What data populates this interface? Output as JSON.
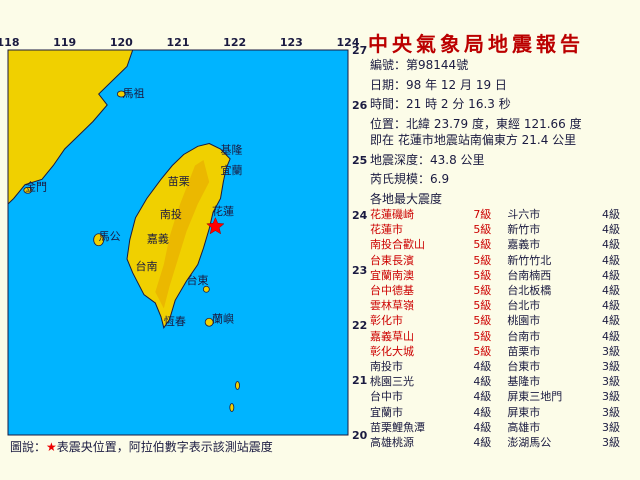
{
  "report": {
    "title": "中央氣象局地震報告",
    "number_label": "編號：",
    "number_value": "第98144號",
    "date_label": "日期：",
    "date_value": "98 年 12 月 19 日",
    "time_label": "時間：",
    "time_value": "21 時 2 分 16.3 秒",
    "position_label": "位置：",
    "position_value": "北緯 23.79 度，東經 121.66 度",
    "location_value": "即在 花蓮市地震站南偏東方 21.4 公里",
    "depth_label": "地震深度：",
    "depth_value": "43.8 公里",
    "magnitude_label": "芮氏規模：",
    "magnitude_value": "6.9",
    "intensity_heading": "各地最大震度"
  },
  "intensity_rows": [
    {
      "left_station": "花蓮磯崎",
      "left_level": "7級",
      "left_hi": true,
      "right_station": "斗六市",
      "right_level": "4級"
    },
    {
      "left_station": "花蓮市",
      "left_level": "5級",
      "left_hi": true,
      "right_station": "新竹市",
      "right_level": "4級"
    },
    {
      "left_station": "南投合歡山",
      "left_level": "5級",
      "left_hi": true,
      "right_station": "嘉義市",
      "right_level": "4級"
    },
    {
      "left_station": "台東長濱",
      "left_level": "5級",
      "left_hi": true,
      "right_station": "新竹竹北",
      "right_level": "4級"
    },
    {
      "left_station": "宜蘭南澳",
      "left_level": "5級",
      "left_hi": true,
      "right_station": "台南楠西",
      "right_level": "4級"
    },
    {
      "left_station": "台中德基",
      "left_level": "5級",
      "left_hi": true,
      "right_station": "台北板橋",
      "right_level": "4級"
    },
    {
      "left_station": "雲林草嶺",
      "left_level": "5級",
      "left_hi": true,
      "right_station": "台北市",
      "right_level": "4級"
    },
    {
      "left_station": "彰化市",
      "left_level": "5級",
      "left_hi": true,
      "right_station": "桃園市",
      "right_level": "4級"
    },
    {
      "left_station": "嘉義草山",
      "left_level": "5級",
      "left_hi": true,
      "right_station": "台南市",
      "right_level": "4級"
    },
    {
      "left_station": "彰化大城",
      "left_level": "5級",
      "left_hi": true,
      "right_station": "苗栗市",
      "right_level": "3級"
    },
    {
      "left_station": "南投市",
      "left_level": "4級",
      "left_hi": false,
      "right_station": "台東市",
      "right_level": "3級"
    },
    {
      "left_station": "桃園三光",
      "left_level": "4級",
      "left_hi": false,
      "right_station": "基隆市",
      "right_level": "3級"
    },
    {
      "left_station": "台中市",
      "left_level": "4級",
      "left_hi": false,
      "right_station": "屏東三地門",
      "right_level": "3級"
    },
    {
      "left_station": "宜蘭市",
      "left_level": "4級",
      "left_hi": false,
      "right_station": "屏東市",
      "right_level": "3級"
    },
    {
      "left_station": "苗栗鯉魚潭",
      "left_level": "4級",
      "left_hi": false,
      "right_station": "高雄市",
      "right_level": "3級"
    },
    {
      "left_station": "高雄桃源",
      "left_level": "4級",
      "left_hi": false,
      "right_station": "澎湖馬公",
      "right_level": "3級"
    }
  ],
  "map": {
    "lon_ticks": [
      "118",
      "119",
      "120",
      "121",
      "122",
      "123",
      "124"
    ],
    "lat_ticks": [
      "27",
      "26",
      "25",
      "24",
      "23",
      "22",
      "21",
      "20"
    ],
    "place_labels": [
      {
        "name": "馬祖",
        "lon": 120.02,
        "lat": 26.15
      },
      {
        "name": "金門",
        "lon": 118.3,
        "lat": 24.45
      },
      {
        "name": "馬公",
        "lon": 119.6,
        "lat": 23.55
      },
      {
        "name": "基隆",
        "lon": 121.75,
        "lat": 25.12
      },
      {
        "name": "宜蘭",
        "lon": 121.75,
        "lat": 24.75
      },
      {
        "name": "苗栗",
        "lon": 120.82,
        "lat": 24.55
      },
      {
        "name": "花蓮",
        "lon": 121.6,
        "lat": 24.0
      },
      {
        "name": "南投",
        "lon": 120.68,
        "lat": 23.95
      },
      {
        "name": "嘉義",
        "lon": 120.45,
        "lat": 23.5
      },
      {
        "name": "台東",
        "lon": 121.15,
        "lat": 22.75
      },
      {
        "name": "恆春",
        "lon": 120.75,
        "lat": 22.0
      },
      {
        "name": "蘭嶼",
        "lon": 121.6,
        "lat": 22.05
      },
      {
        "name": "台南",
        "lon": 120.25,
        "lat": 23.0
      }
    ],
    "epicenter": {
      "lon": 121.66,
      "lat": 23.79
    }
  },
  "legend": {
    "prefix": "圖說：",
    "star": "★",
    "text": "表震央位置，阿拉伯數字表示該測站震度"
  },
  "colors": {
    "sea": "#00b4ff",
    "land": "#f0d000",
    "land_dark": "#e8a800",
    "epicenter": "#ff0000"
  }
}
